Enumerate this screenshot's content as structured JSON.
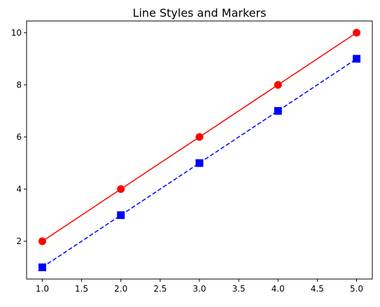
{
  "chart_data": {
    "type": "line",
    "title": "Line Styles and Markers",
    "xlabel": "",
    "ylabel": "",
    "x": [
      1,
      2,
      3,
      4,
      5
    ],
    "xlim": [
      0.8,
      5.2
    ],
    "ylim": [
      0.55,
      10.45
    ],
    "x_ticks": [
      "1.0",
      "1.5",
      "2.0",
      "2.5",
      "3.0",
      "3.5",
      "4.0",
      "4.5",
      "5.0"
    ],
    "y_ticks": [
      "2",
      "4",
      "6",
      "8",
      "10"
    ],
    "grid": false,
    "legend": "none",
    "series": [
      {
        "values": [
          2,
          4,
          6,
          8,
          10
        ],
        "color": "#ff0000",
        "line_style": "solid",
        "marker": "circle"
      },
      {
        "values": [
          1,
          3,
          5,
          7,
          9
        ],
        "color": "#0000ff",
        "line_style": "dashed",
        "marker": "square"
      }
    ]
  }
}
